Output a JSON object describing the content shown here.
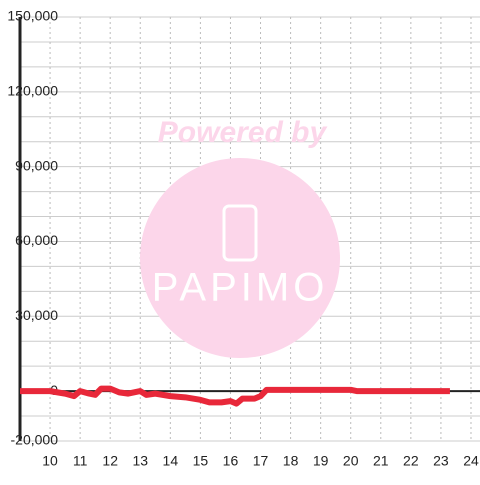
{
  "chart_data": {
    "type": "line",
    "x": [
      9,
      10,
      10.5,
      10.8,
      11,
      11.3,
      11.5,
      11.7,
      12,
      12.3,
      12.6,
      13,
      13.2,
      13.5,
      14,
      14.5,
      15,
      15.3,
      15.7,
      16,
      16.2,
      16.4,
      16.8,
      17,
      17.2,
      18,
      19,
      20,
      20.2,
      21,
      22,
      23.3
    ],
    "series": [
      {
        "color": "#e8283a",
        "values": [
          0,
          0,
          -1000,
          -2000,
          0,
          -1000,
          -1500,
          1000,
          1000,
          -500,
          -1000,
          0,
          -1500,
          -1000,
          -2000,
          -2500,
          -3500,
          -4500,
          -4500,
          -4000,
          -5000,
          -3000,
          -3000,
          -2000,
          500,
          500,
          500,
          500,
          0,
          0,
          0,
          0
        ]
      }
    ],
    "xlim": [
      9,
      24.3
    ],
    "ylim": [
      -20000,
      150000
    ],
    "xticks": [
      10,
      11,
      12,
      13,
      14,
      15,
      16,
      17,
      18,
      19,
      20,
      21,
      22,
      23,
      24
    ],
    "yticks": [
      {
        "value": -20000,
        "label": "-20,000"
      },
      0,
      {
        "value": 30000,
        "label": "30,000"
      },
      {
        "value": 60000,
        "label": "60,000"
      },
      {
        "value": 90000,
        "label": "90,000"
      },
      {
        "value": 120000,
        "label": "120,000"
      },
      {
        "value": 150000,
        "label": "150,000"
      }
    ],
    "yminor": [
      -10000,
      10000,
      20000,
      40000,
      50000,
      70000,
      80000,
      100000,
      110000,
      130000,
      140000
    ],
    "grid": true,
    "annotations": [
      "Powered by",
      "PAPIMO"
    ]
  }
}
